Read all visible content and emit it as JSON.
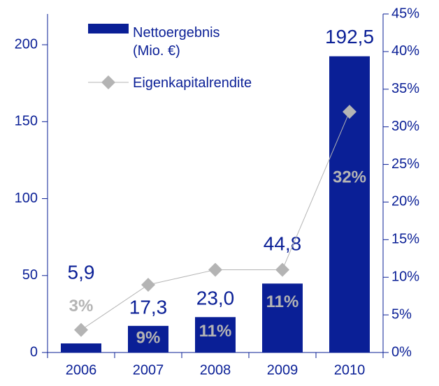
{
  "chart_data": {
    "type": "bar+line",
    "categories": [
      "2006",
      "2007",
      "2008",
      "2009",
      "2010"
    ],
    "series": [
      {
        "name": "Nettoergebnis (Mio. €)",
        "type": "bar",
        "color": "#0a1f96",
        "values": [
          5.9,
          17.3,
          23.0,
          44.8,
          192.5
        ],
        "value_labels": [
          "5,9",
          "17,3",
          "23,0",
          "44,8",
          "192,5"
        ]
      },
      {
        "name": "Eigenkapitalrendite",
        "type": "line",
        "axis": "y2",
        "color": "#b4b4b4",
        "values": [
          3,
          9,
          11,
          11,
          32
        ],
        "value_labels": [
          "3%",
          "9%",
          "11%",
          "11%",
          "32%"
        ]
      }
    ],
    "ylim": [
      0,
      220
    ],
    "yticks": [
      0,
      50,
      100,
      150,
      200
    ],
    "y2lim": [
      0,
      45
    ],
    "y2ticks": [
      {
        "value": 0,
        "label": "0%"
      },
      {
        "value": 5,
        "label": "5%"
      },
      {
        "value": 10,
        "label": "10%"
      },
      {
        "value": 15,
        "label": "15%"
      },
      {
        "value": 20,
        "label": "20%"
      },
      {
        "value": 25,
        "label": "25%"
      },
      {
        "value": 30,
        "label": "30%"
      },
      {
        "value": 35,
        "label": "35%"
      },
      {
        "value": 40,
        "label": "40%"
      },
      {
        "value": 45,
        "label": "45%"
      }
    ]
  }
}
